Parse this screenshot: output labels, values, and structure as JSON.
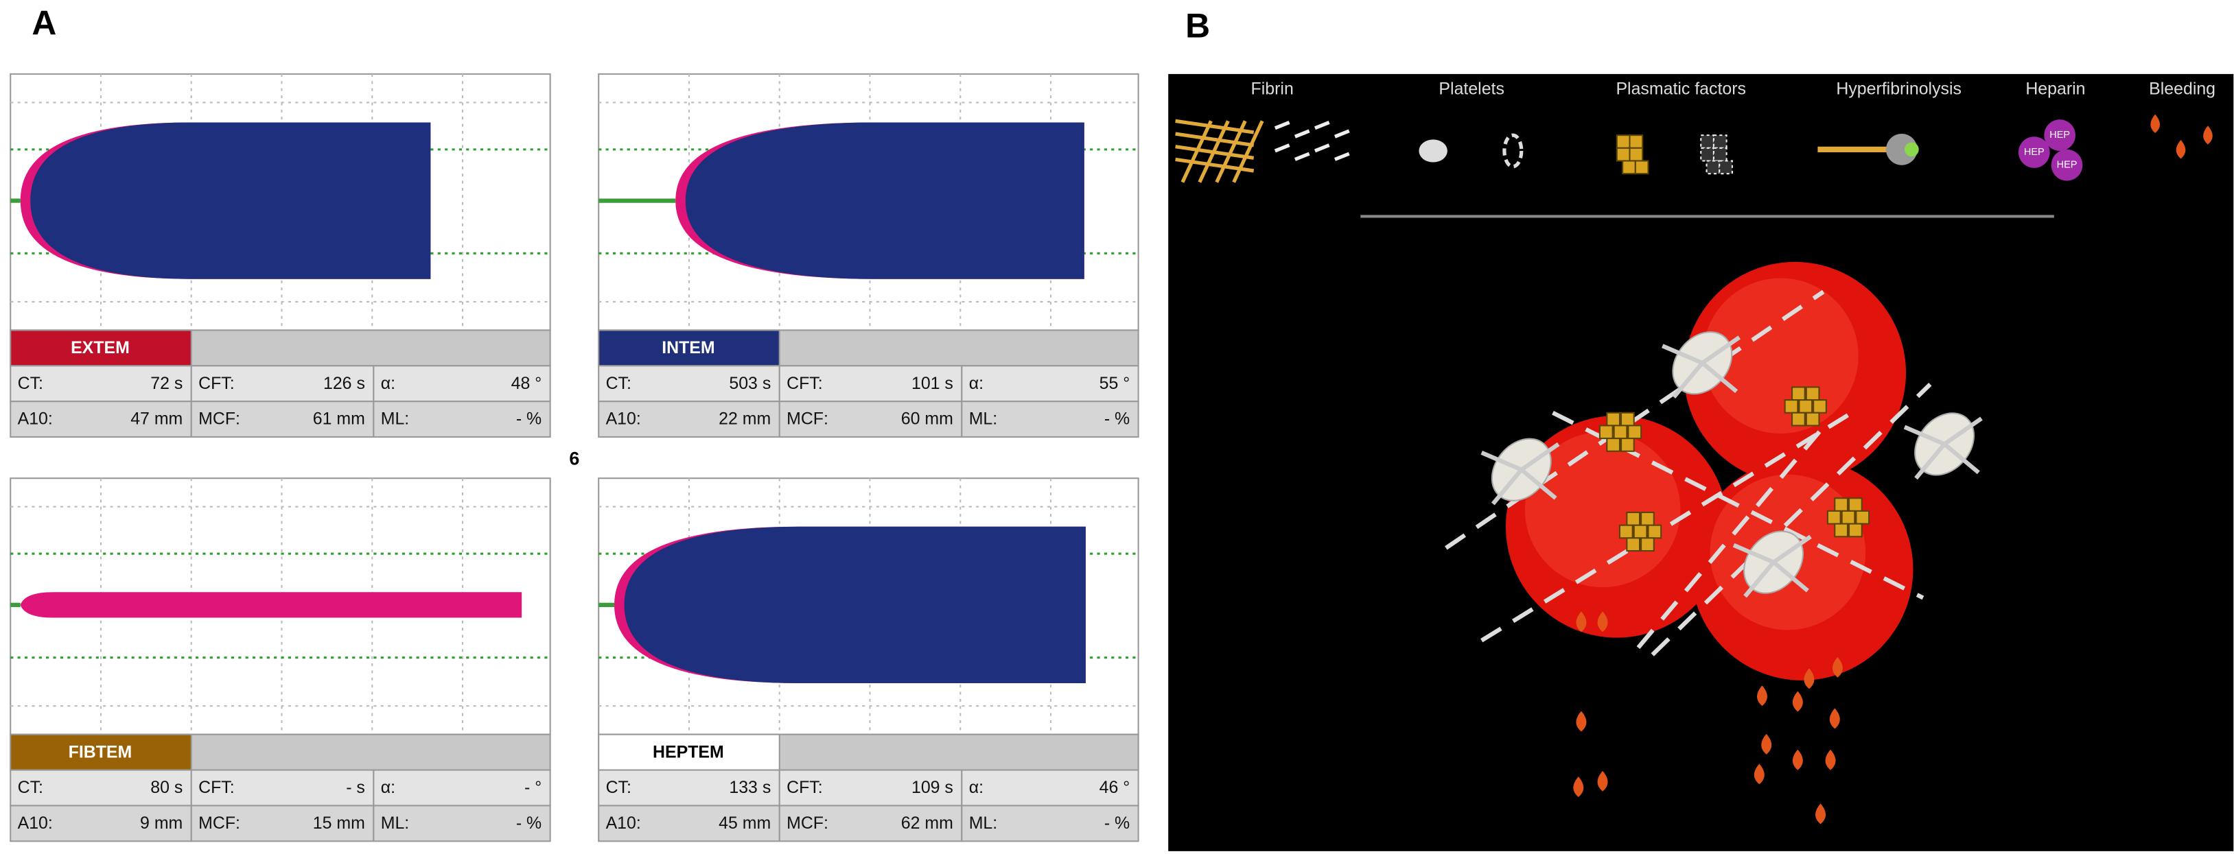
{
  "figure_labels": {
    "a": "A",
    "b": "B"
  },
  "page_number": "6",
  "panel_a": {
    "tests": [
      {
        "name": "EXTEM",
        "cells": [
          [
            "CT:",
            "72 s"
          ],
          [
            "CFT:",
            "126 s"
          ],
          [
            "α:",
            "48 °"
          ],
          [
            "A10:",
            "47 mm"
          ],
          [
            "MCF:",
            "61 mm"
          ],
          [
            "ML:",
            "- %"
          ]
        ]
      },
      {
        "name": "INTEM",
        "cells": [
          [
            "CT:",
            "503 s"
          ],
          [
            "CFT:",
            "101 s"
          ],
          [
            "α:",
            "55 °"
          ],
          [
            "A10:",
            "22 mm"
          ],
          [
            "MCF:",
            "60 mm"
          ],
          [
            "ML:",
            "- %"
          ]
        ]
      },
      {
        "name": "FIBTEM",
        "cells": [
          [
            "CT:",
            "80 s"
          ],
          [
            "CFT:",
            "- s"
          ],
          [
            "α:",
            "- °"
          ],
          [
            "A10:",
            "9 mm"
          ],
          [
            "MCF:",
            "15 mm"
          ],
          [
            "ML:",
            "- %"
          ]
        ]
      },
      {
        "name": "HEPTEM",
        "cells": [
          [
            "CT:",
            "133 s"
          ],
          [
            "CFT:",
            "109 s"
          ],
          [
            "α:",
            "46 °"
          ],
          [
            "A10:",
            "45 mm"
          ],
          [
            "MCF:",
            "62 mm"
          ],
          [
            "ML:",
            "- %"
          ]
        ]
      }
    ]
  },
  "panel_b": {
    "categories": [
      "Fibrin",
      "Platelets",
      "Plasmatic factors",
      "Hyperfibrinolysis",
      "Heparin",
      "Bleeding"
    ],
    "heparin_icon": [
      "HEP",
      "HEP",
      "HEP"
    ]
  }
}
